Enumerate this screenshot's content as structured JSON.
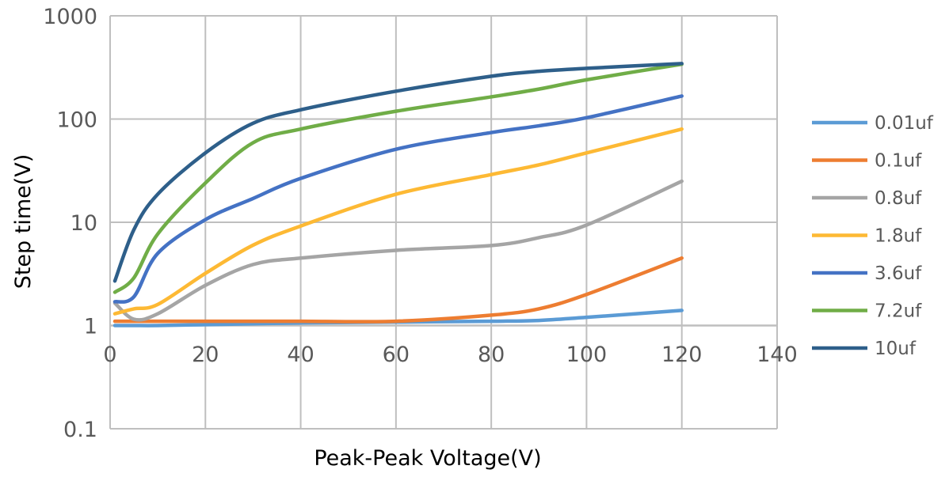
{
  "chart_data": {
    "type": "line",
    "title": "",
    "xlabel": "Peak-Peak Voltage(V)",
    "ylabel": "Step time(V)",
    "xlim": [
      0,
      140
    ],
    "ylim": [
      0.1,
      1000
    ],
    "yscale": "log",
    "x_axis_crosses_at": 1,
    "grid": true,
    "legend": "right",
    "xticks": [
      "0",
      "20",
      "40",
      "60",
      "80",
      "100",
      "120",
      "140"
    ],
    "yticks": [
      "0.1",
      "1",
      "10",
      "100",
      "1000"
    ],
    "x": [
      1,
      5,
      10,
      20,
      30,
      40,
      60,
      80,
      90,
      100,
      120
    ],
    "series": [
      {
        "name": "0.01uf",
        "color": "#5B9BD5",
        "values": [
          1.0,
          1.0,
          1.0,
          1.02,
          1.04,
          1.06,
          1.08,
          1.1,
          1.12,
          1.2,
          1.4
        ]
      },
      {
        "name": "0.1uf",
        "color": "#ED7D31",
        "values": [
          1.1,
          1.1,
          1.1,
          1.1,
          1.1,
          1.1,
          1.1,
          1.26,
          1.45,
          2.0,
          4.5
        ]
      },
      {
        "name": "0.8uf",
        "color": "#A5A5A5",
        "values": [
          1.65,
          1.15,
          1.3,
          2.45,
          3.9,
          4.5,
          5.35,
          5.95,
          7.1,
          9.4,
          25
        ]
      },
      {
        "name": "1.8uf",
        "color": "#FDB934",
        "values": [
          1.3,
          1.45,
          1.6,
          3.2,
          6.0,
          9.2,
          18.7,
          29,
          36,
          47,
          80
        ]
      },
      {
        "name": "3.6uf",
        "color": "#4472C4",
        "values": [
          1.7,
          1.9,
          5.0,
          10.6,
          17,
          26.6,
          51,
          74,
          86,
          103,
          167
        ]
      },
      {
        "name": "7.2uf",
        "color": "#70AD47",
        "values": [
          2.1,
          2.9,
          7.7,
          24,
          59,
          80,
          119,
          164,
          195,
          240,
          340
        ]
      },
      {
        "name": "10uf",
        "color": "#2E5F8A",
        "values": [
          2.7,
          8.5,
          18.7,
          47,
          91,
          123,
          186,
          260,
          290,
          310,
          345
        ]
      }
    ]
  }
}
